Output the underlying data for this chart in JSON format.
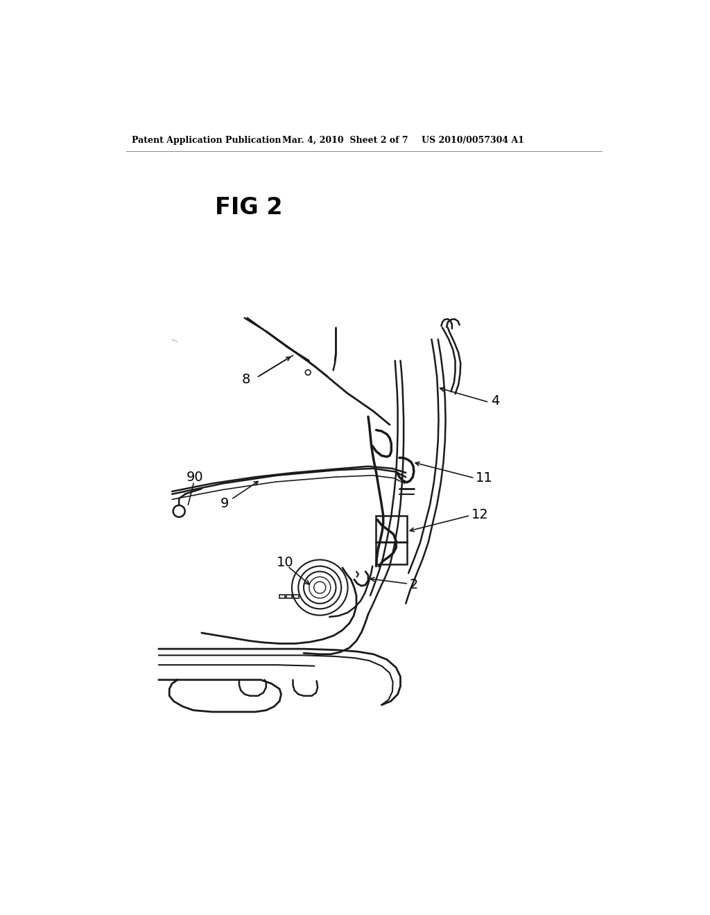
{
  "background_color": "#ffffff",
  "header_left": "Patent Application Publication",
  "header_center": "Mar. 4, 2010  Sheet 2 of 7",
  "header_right": "US 2010/0057304 A1",
  "fig_label": "FIG 2",
  "line_color": "#1a1a1a",
  "line_width": 1.8
}
